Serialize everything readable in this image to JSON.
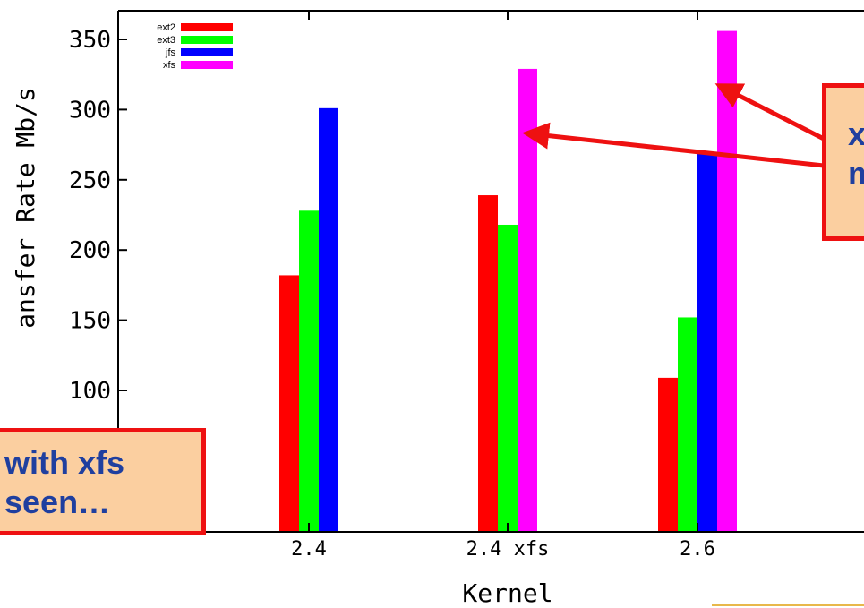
{
  "chart_data": {
    "type": "bar",
    "categories": [
      "2.4",
      "2.4 xfs",
      "2.6"
    ],
    "series": [
      {
        "name": "ext2",
        "color": "#ff0000",
        "values": [
          182,
          239,
          109
        ]
      },
      {
        "name": "ext3",
        "color": "#00ff00",
        "values": [
          228,
          218,
          152
        ]
      },
      {
        "name": "jfs",
        "color": "#0000ff",
        "values": [
          301,
          null,
          270
        ]
      },
      {
        "name": "xfs",
        "color": "#ff00ff",
        "values": [
          null,
          329,
          356
        ]
      }
    ],
    "xlabel": "Kernel",
    "ylabel": "ansfer Rate Mb/s",
    "yticks": [
      100,
      150,
      200,
      250,
      300,
      350
    ],
    "ylim": [
      50,
      370
    ],
    "legend_position": "top-left"
  },
  "callouts": {
    "left": {
      "line1": "with xfs",
      "line2": "seen…"
    },
    "right": {
      "line1": "x",
      "line2": "m"
    }
  }
}
